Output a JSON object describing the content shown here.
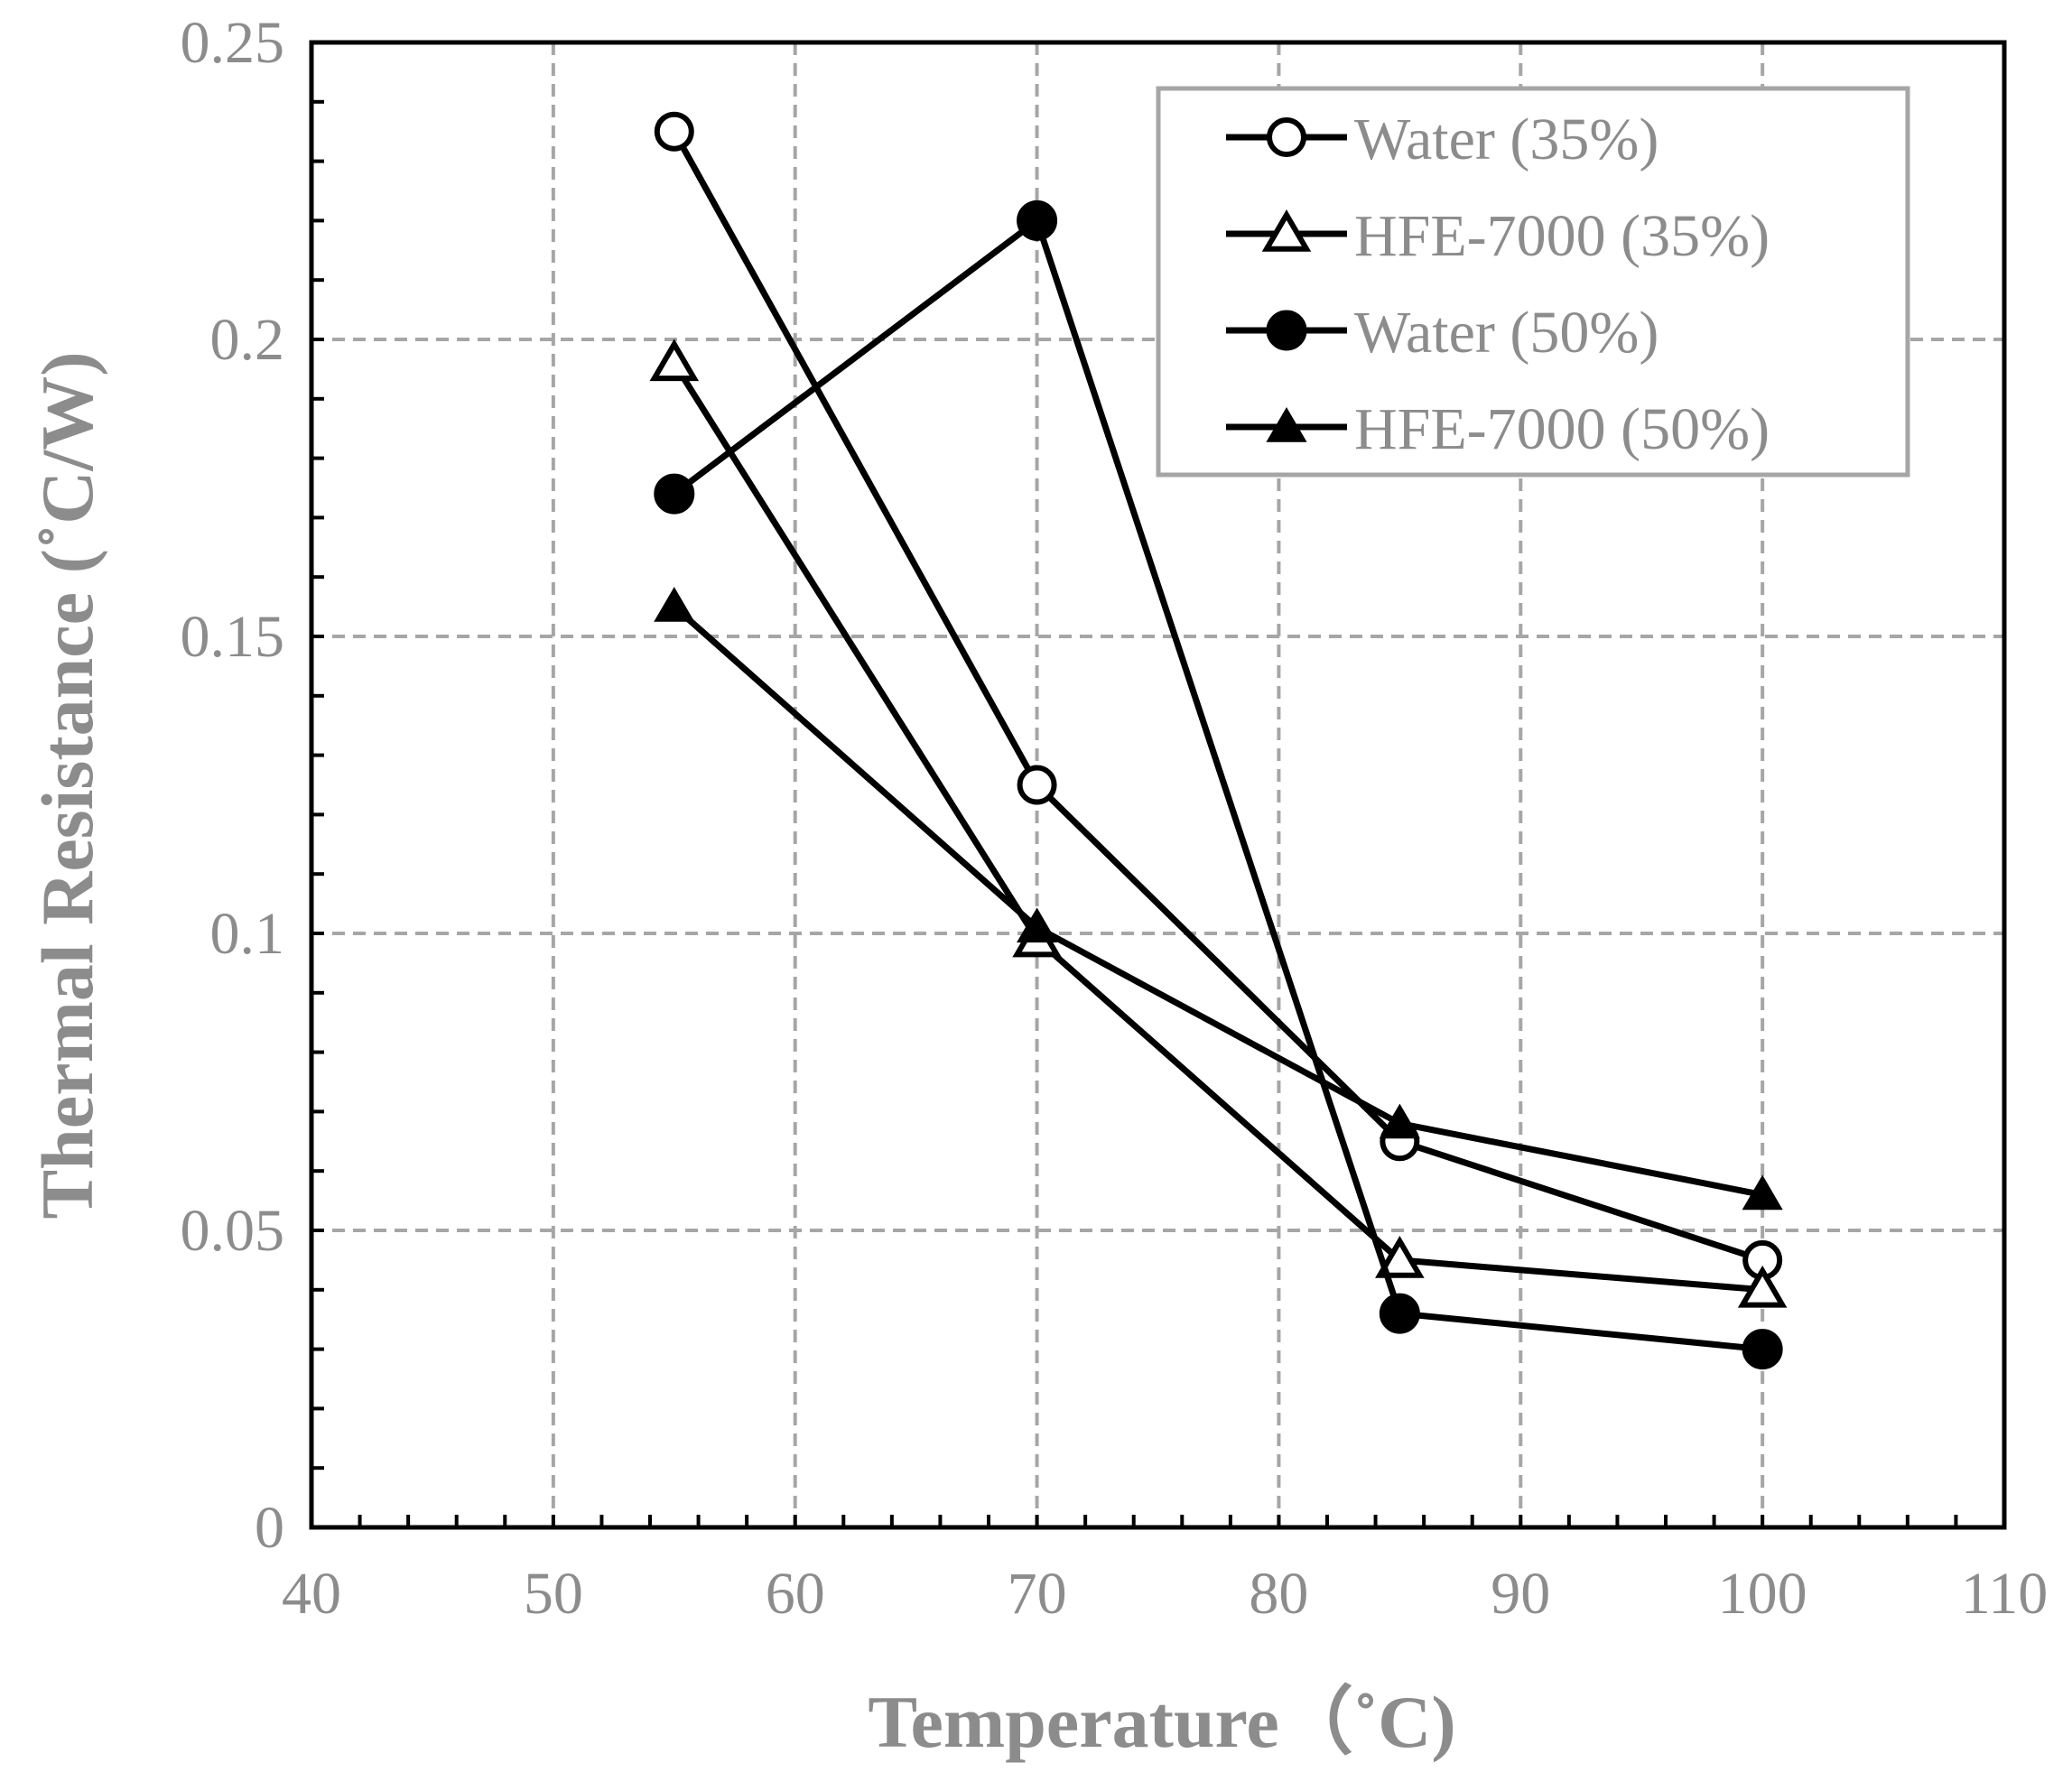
{
  "chart_data": {
    "type": "line",
    "title": "",
    "xlabel": "Temperature（˚C)",
    "ylabel": "Thermal Resistance (˚C/W)",
    "xlim": [
      40,
      110
    ],
    "ylim": [
      0,
      0.25
    ],
    "xticks": [
      40,
      50,
      60,
      70,
      80,
      90,
      100,
      110
    ],
    "xtick_labels": [
      "40",
      "50",
      "60",
      "70",
      "80",
      "90",
      "100",
      "110"
    ],
    "yticks": [
      0,
      0.05,
      0.1,
      0.15,
      0.2,
      0.25
    ],
    "ytick_labels": [
      "0",
      "0.05",
      "0.1",
      "0.15",
      "0.2",
      "0.25"
    ],
    "grid": true,
    "legend_position": "top-right",
    "series": [
      {
        "name": "Water (35%)",
        "marker": "circle-open",
        "x": [
          55,
          70,
          85,
          100
        ],
        "values": [
          0.235,
          0.125,
          0.065,
          0.045
        ]
      },
      {
        "name": "HFE-7000 (35%)",
        "marker": "triangle-open",
        "x": [
          55,
          70,
          85,
          100
        ],
        "values": [
          0.196,
          0.099,
          0.045,
          0.04
        ]
      },
      {
        "name": "Water (50%)",
        "marker": "circle-filled",
        "x": [
          55,
          70,
          85,
          100
        ],
        "values": [
          0.174,
          0.22,
          0.036,
          0.03
        ]
      },
      {
        "name": "HFE-7000 (50%)",
        "marker": "triangle-filled",
        "x": [
          55,
          70,
          85,
          100
        ],
        "values": [
          0.155,
          0.101,
          0.068,
          0.056
        ]
      }
    ],
    "colors": {
      "line": "#000000",
      "grid": "#a6a6a6",
      "text": "#8c8c8c",
      "legend_border": "#a6a6a6"
    }
  }
}
